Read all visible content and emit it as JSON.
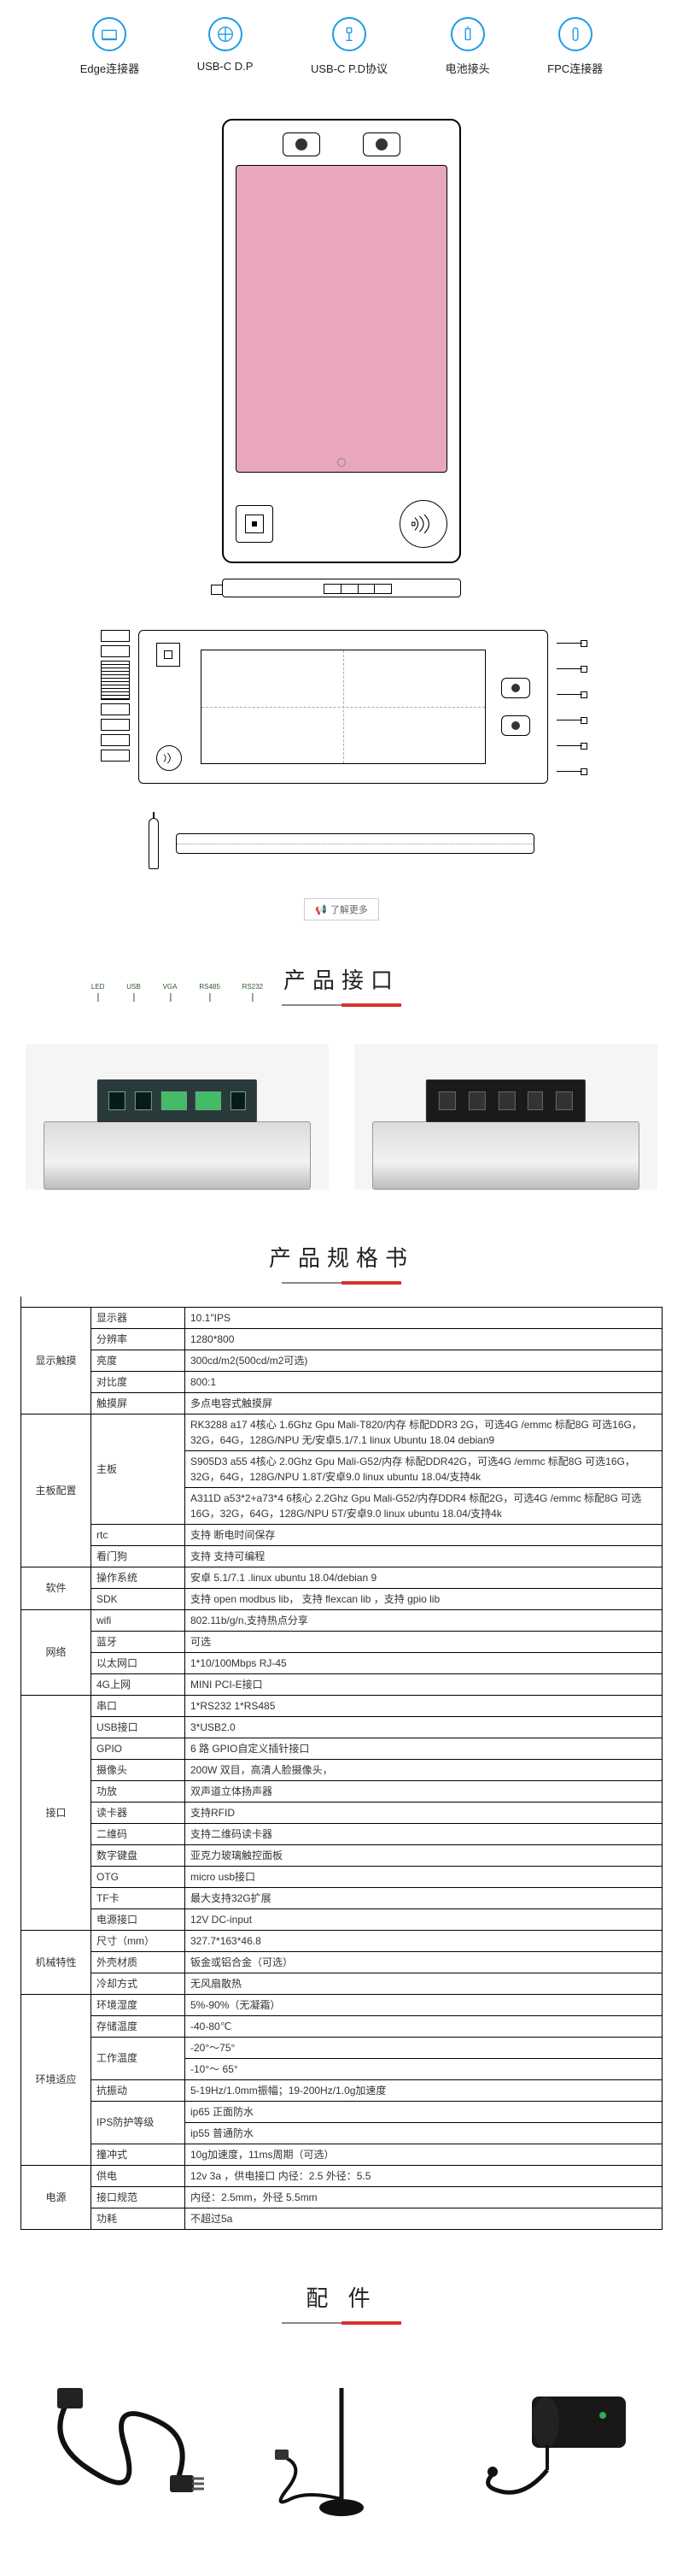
{
  "icons": [
    {
      "name": "edge-connector-icon",
      "label": "Edge连接器"
    },
    {
      "name": "usbc-dp-icon",
      "label": "USB-C D.P"
    },
    {
      "name": "usbc-pd-icon",
      "label": "USB-C P.D协议"
    },
    {
      "name": "battery-icon",
      "label": "电池接头"
    },
    {
      "name": "fpc-icon",
      "label": "FPC连接器"
    }
  ],
  "info_button": "了解更多",
  "section_interfaces_title": "产品接口",
  "interface_labels": {
    "left": [
      "LED",
      "USB",
      "VGA",
      "RS485",
      "RS232"
    ]
  },
  "section_spec_title": "产品规格书",
  "spec_groups": [
    {
      "category": "显示触摸",
      "rows": [
        {
          "label": "显示器",
          "value": "10.1″IPS"
        },
        {
          "label": "分辨率",
          "value": "1280*800"
        },
        {
          "label": "亮度",
          "value": "300cd/m2(500cd/m2可选)"
        },
        {
          "label": "对比度",
          "value": "800:1"
        },
        {
          "label": "触摸屏",
          "value": "多点电容式触摸屏"
        }
      ]
    },
    {
      "category": "主板配置",
      "rows": [
        {
          "label": "主板",
          "multi": [
            "RK3288 a17 4核心 1.6Ghz Gpu Mali-T820/内存 标配DDR3 2G，可选4G /emmc 标配8G 可选16G，32G，64G，128G/NPU 无/安卓5.1/7.1 linux Ubuntu 18.04 debian9",
            "S905D3 a55 4核心 2.0Ghz Gpu Mali-G52/内存 标配DDR42G，可选4G /emmc 标配8G 可选16G，32G，64G，128G/NPU 1.8T/安卓9.0 linux ubuntu 18.04/支持4k",
            "A311D  a53*2+a73*4 6核心 2.2Ghz Gpu Mali-G52/内存DDR4 标配2G，可选4G /emmc 标配8G 可选16G，32G，64G，128G/NPU 5T/安卓9.0 linux ubuntu 18.04/支持4k"
          ]
        },
        {
          "label": "rtc",
          "value": "支持 断电时间保存"
        },
        {
          "label": "看门狗",
          "value": "支持  支持可编程"
        }
      ]
    },
    {
      "category": "软件",
      "rows": [
        {
          "label": "操作系统",
          "value": "安卓 5.1/7.1 .linux ubuntu 18.04/debian 9"
        },
        {
          "label": "SDK",
          "value": "支持  open modbus lib，  支持   flexcan lib ，支持 gpio lib"
        }
      ]
    },
    {
      "category": "网络",
      "rows": [
        {
          "label": "wifi",
          "value": "802.11b/g/n,支持热点分享"
        },
        {
          "label": "蓝牙",
          "value": "可选"
        },
        {
          "label": "以太网口",
          "value": "1*10/100Mbps RJ-45"
        },
        {
          "label": "4G上网",
          "value": "MINI PCI-E接口"
        }
      ]
    },
    {
      "category": "接口",
      "rows": [
        {
          "label": "串口",
          "value": "1*RS232 1*RS485"
        },
        {
          "label": "USB接口",
          "value": "3*USB2.0"
        },
        {
          "label": "GPIO",
          "value": "6 路 GPIO自定义插针接口"
        },
        {
          "label": "摄像头",
          "value": "200W 双目，高清人脸摄像头，"
        },
        {
          "label": "功放",
          "value": "双声道立体扬声器"
        },
        {
          "label": "读卡器",
          "value": "支持RFID"
        },
        {
          "label": "二维码",
          "value": "支持二维码读卡器"
        },
        {
          "label": "数字键盘",
          "value": "亚克力玻璃触控面板"
        },
        {
          "label": "OTG",
          "value": "micro usb接口"
        },
        {
          "label": "TF卡",
          "value": "最大支持32G扩展"
        },
        {
          "label": "电源接口",
          "value": "12V DC-input"
        }
      ]
    },
    {
      "category": "机械特性",
      "rows": [
        {
          "label": "尺寸（mm）",
          "value": "327.7*163*46.8"
        },
        {
          "label": "外壳材质",
          "value": "钣金或铝合金（可选）"
        },
        {
          "label": "冷却方式",
          "value": "无风扇散热"
        }
      ]
    },
    {
      "category": "环境适应",
      "rows": [
        {
          "label": "环境湿度",
          "value": "5%-90%（无凝霜）"
        },
        {
          "label": "存储温度",
          "value": "-40-80℃"
        },
        {
          "label": "工作温度",
          "multi": [
            "-20°～75°",
            "-10°～ 65°"
          ]
        },
        {
          "label": "抗振动",
          "value": "5-19Hz/1.0mm振幅；19-200Hz/1.0g加速度"
        },
        {
          "label": "IPS防护等级",
          "multi": [
            "ip65 正面防水",
            "ip55 普通防水"
          ]
        },
        {
          "label": "撞冲式",
          "value": "10g加速度，11ms周期（可选）"
        }
      ]
    },
    {
      "category": "电源",
      "rows": [
        {
          "label": "供电",
          "value": "12v  3a ，供电接口 内径：2.5   外径：5.5"
        },
        {
          "label": "接口规范",
          "value": "内径：2.5mm，外径 5.5mm"
        },
        {
          "label": "功耗",
          "value": "不超过5a"
        }
      ]
    }
  ],
  "section_acc_title": "配 件",
  "colors": {
    "accent_blue": "#1e9be8",
    "accent_red": "#d9342b",
    "screen_pink": "#e8a6bf"
  }
}
